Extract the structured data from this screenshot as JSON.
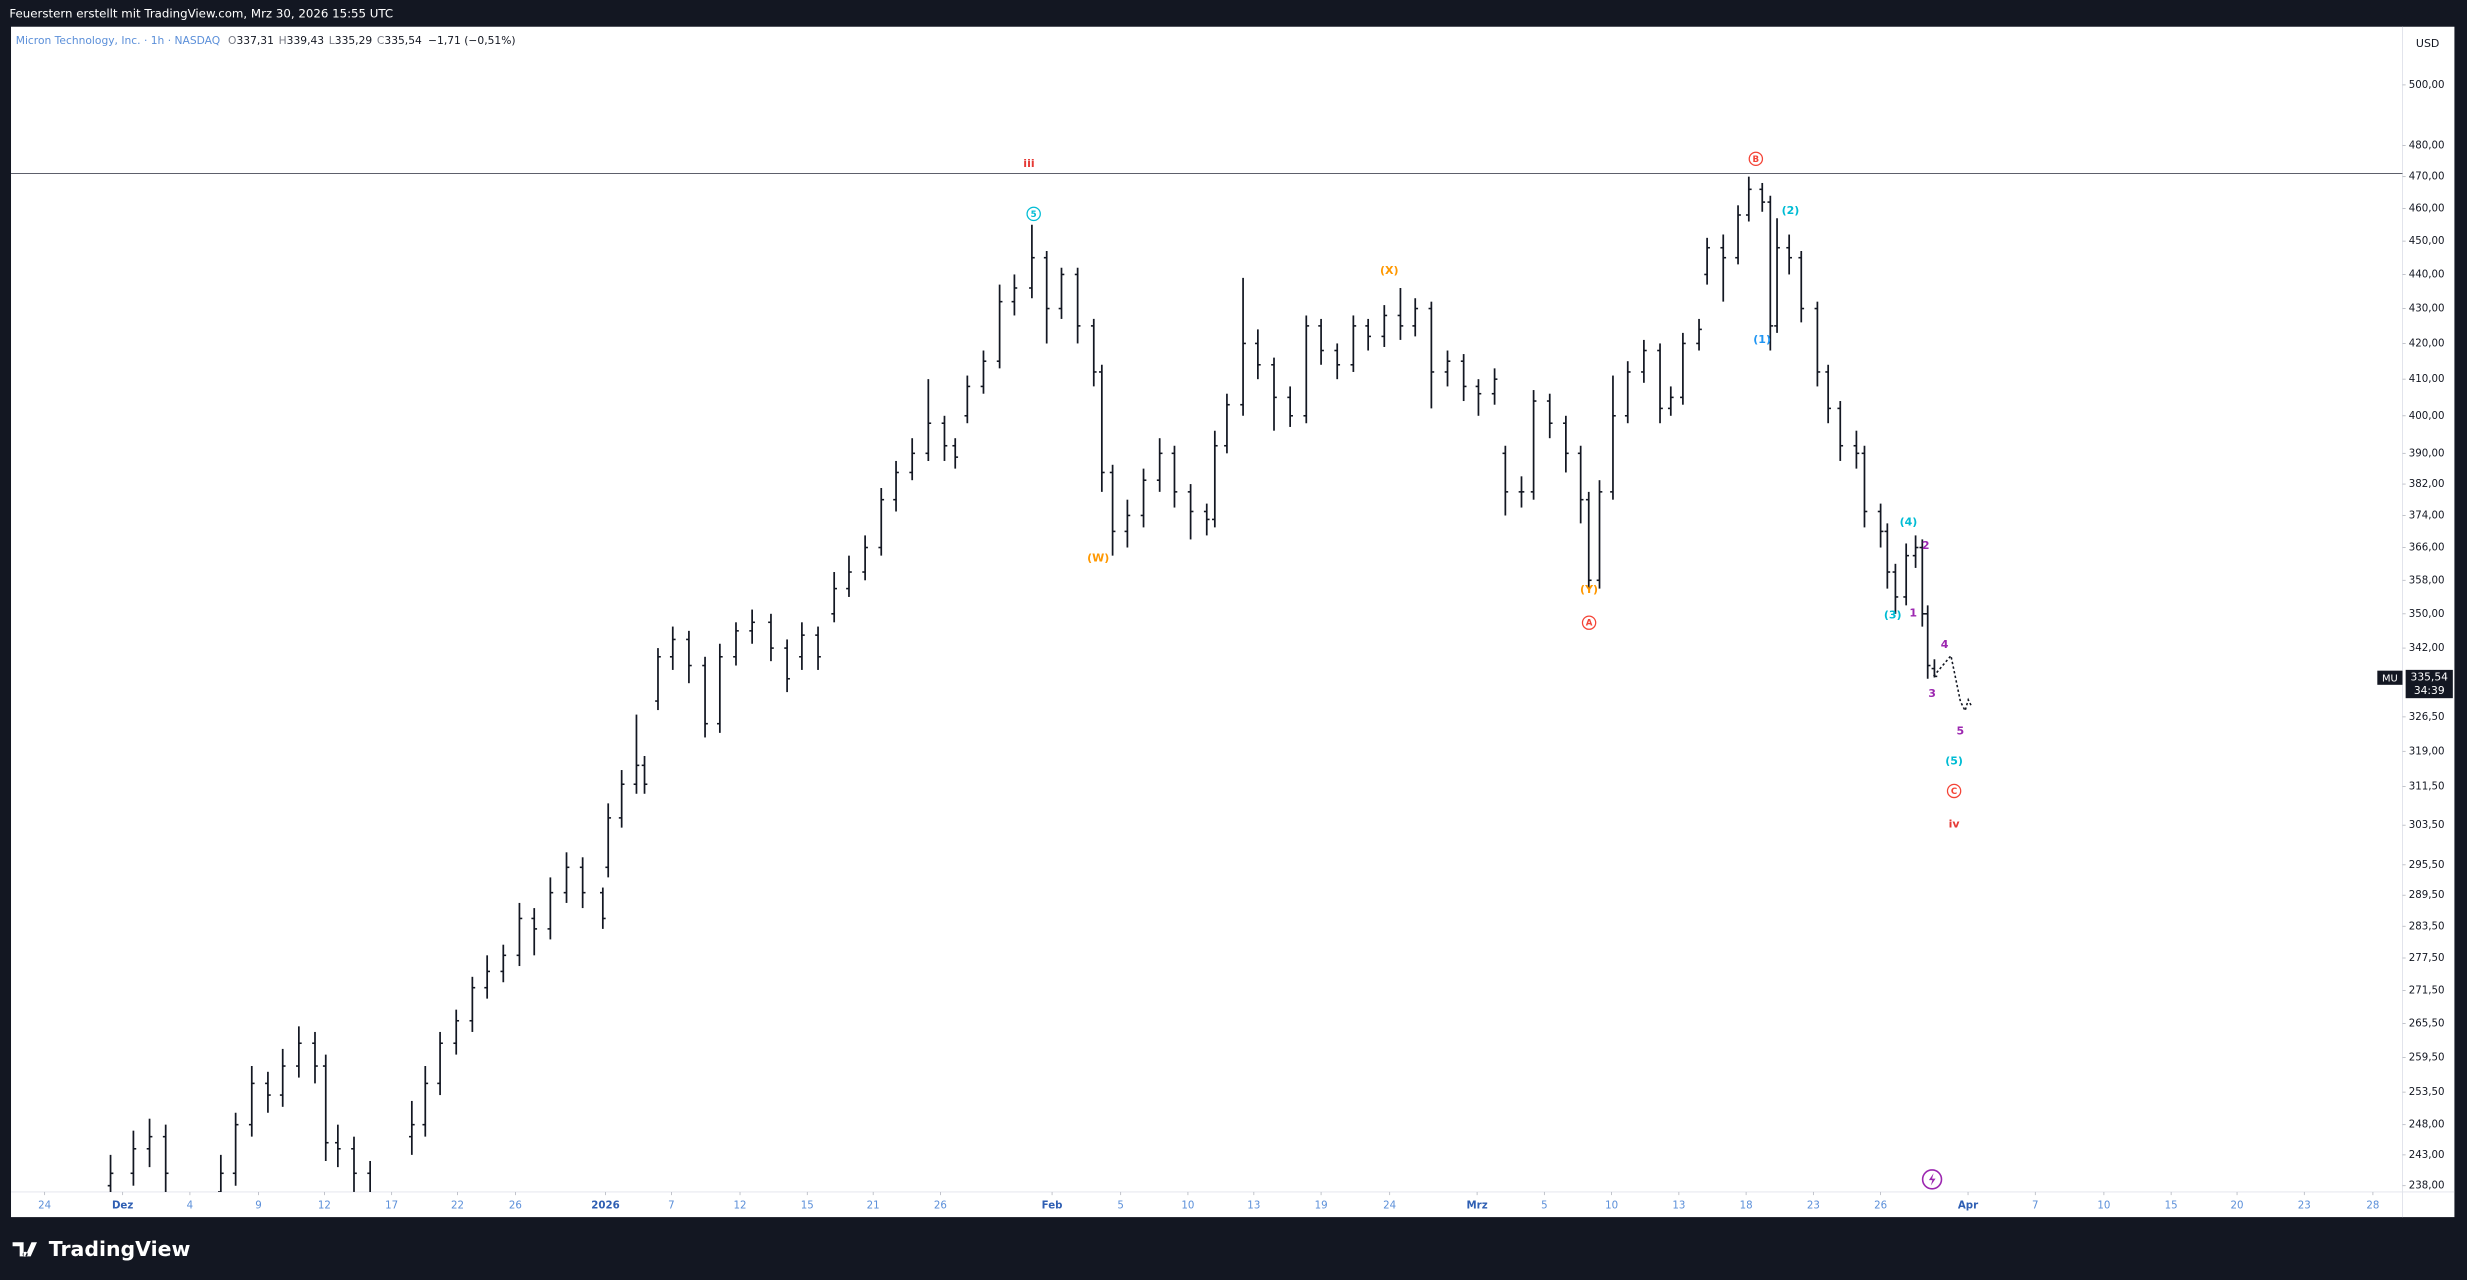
{
  "header": "Feuerstern erstellt mit TradingView.com, Mrz 30, 2026 15:55 UTC",
  "brand": "TradingView",
  "chart_data": {
    "type": "ohlc",
    "legend": {
      "symbol": "Micron Technology, Inc. · 1h · NASDAQ",
      "ohlc": [
        {
          "key": "O",
          "value": "337,31"
        },
        {
          "key": "H",
          "value": "339,43"
        },
        {
          "key": "L",
          "value": "335,29"
        },
        {
          "key": "C",
          "value": "335,54"
        }
      ],
      "change": "−1,71 (−0,51%)"
    },
    "currency": "USD",
    "price_label": {
      "symbol": "MU",
      "price": "335,54",
      "countdown": "34:39"
    },
    "color": "#131722",
    "log_scale": true,
    "grid": false,
    "hline": 471,
    "xlim": [
      0,
      177.8
    ],
    "ylim": [
      237,
      520
    ],
    "xticks": [
      {
        "value": 2.5,
        "label": "24"
      },
      {
        "value": 8.3,
        "label": "Dez"
      },
      {
        "value": 13.3,
        "label": "4"
      },
      {
        "value": 18.4,
        "label": "9"
      },
      {
        "value": 23.3,
        "label": "12"
      },
      {
        "value": 28.3,
        "label": "17"
      },
      {
        "value": 33.2,
        "label": "22"
      },
      {
        "value": 37.5,
        "label": "26"
      },
      {
        "value": 44.2,
        "label": "2026"
      },
      {
        "value": 49.1,
        "label": "7"
      },
      {
        "value": 54.2,
        "label": "12"
      },
      {
        "value": 59.2,
        "label": "15"
      },
      {
        "value": 64.1,
        "label": "21"
      },
      {
        "value": 69.1,
        "label": "26"
      },
      {
        "value": 77.4,
        "label": "Feb"
      },
      {
        "value": 82.5,
        "label": "5"
      },
      {
        "value": 87.5,
        "label": "10"
      },
      {
        "value": 92.4,
        "label": "13"
      },
      {
        "value": 97.4,
        "label": "19"
      },
      {
        "value": 102.5,
        "label": "24"
      },
      {
        "value": 109,
        "label": "Mrz"
      },
      {
        "value": 114,
        "label": "5"
      },
      {
        "value": 119,
        "label": "10"
      },
      {
        "value": 124,
        "label": "13"
      },
      {
        "value": 129,
        "label": "18"
      },
      {
        "value": 134,
        "label": "23"
      },
      {
        "value": 139,
        "label": "26"
      },
      {
        "value": 145.5,
        "label": "Apr"
      },
      {
        "value": 150.5,
        "label": "7"
      },
      {
        "value": 155.6,
        "label": "10"
      },
      {
        "value": 160.6,
        "label": "15"
      },
      {
        "value": 165.5,
        "label": "20"
      },
      {
        "value": 170.5,
        "label": "23"
      },
      {
        "value": 175.6,
        "label": "28"
      }
    ],
    "yticks": [
      {
        "value": 500,
        "label": "500,00"
      },
      {
        "value": 480,
        "label": "480,00"
      },
      {
        "value": 470,
        "label": "470,00"
      },
      {
        "value": 460,
        "label": "460,00"
      },
      {
        "value": 450,
        "label": "450,00"
      },
      {
        "value": 440,
        "label": "440,00"
      },
      {
        "value": 430,
        "label": "430,00"
      },
      {
        "value": 420,
        "label": "420,00"
      },
      {
        "value": 410,
        "label": "410,00"
      },
      {
        "value": 400,
        "label": "400,00"
      },
      {
        "value": 390,
        "label": "390,00"
      },
      {
        "value": 382,
        "label": "382,00"
      },
      {
        "value": 374,
        "label": "374,00"
      },
      {
        "value": 366,
        "label": "366,00"
      },
      {
        "value": 358,
        "label": "358,00"
      },
      {
        "value": 350,
        "label": "350,00"
      },
      {
        "value": 342,
        "label": "342,00"
      },
      {
        "value": 326.5,
        "label": "326,50"
      },
      {
        "value": 319,
        "label": "319,00"
      },
      {
        "value": 311.5,
        "label": "311,50"
      },
      {
        "value": 303.5,
        "label": "303,50"
      },
      {
        "value": 295.5,
        "label": "295,50"
      },
      {
        "value": 289.5,
        "label": "289,50"
      },
      {
        "value": 283.5,
        "label": "283,50"
      },
      {
        "value": 277.5,
        "label": "277,50"
      },
      {
        "value": 271.5,
        "label": "271,50"
      },
      {
        "value": 265.5,
        "label": "265,50"
      },
      {
        "value": 259.5,
        "label": "259,50"
      },
      {
        "value": 253.5,
        "label": "253,50"
      },
      {
        "value": 248,
        "label": "248,00"
      },
      {
        "value": 243,
        "label": "243,00"
      },
      {
        "value": 238,
        "label": "238,00"
      }
    ],
    "bars": [
      [
        7.4,
        238,
        243,
        236,
        240
      ],
      [
        9.1,
        240,
        247,
        238,
        244
      ],
      [
        10.3,
        244,
        249,
        241,
        246
      ],
      [
        11.5,
        246,
        248,
        237,
        240
      ],
      [
        15.6,
        237,
        243,
        235,
        240
      ],
      [
        16.7,
        240,
        250,
        238,
        248
      ],
      [
        17.9,
        248,
        258,
        246,
        255
      ],
      [
        19.1,
        255,
        257,
        250,
        253
      ],
      [
        20.2,
        253,
        261,
        251,
        258
      ],
      [
        21.4,
        258,
        265,
        256,
        262
      ],
      [
        22.6,
        262,
        264,
        255,
        258
      ],
      [
        23.4,
        258,
        260,
        242,
        245
      ],
      [
        24.3,
        245,
        248,
        241,
        244
      ],
      [
        25.5,
        244,
        246,
        237,
        240
      ],
      [
        26.7,
        240,
        242,
        234,
        236
      ],
      [
        29.8,
        246,
        252,
        243,
        248
      ],
      [
        30.8,
        248,
        258,
        246,
        255
      ],
      [
        31.9,
        255,
        264,
        253,
        262
      ],
      [
        33.1,
        262,
        268,
        260,
        266
      ],
      [
        34.3,
        266,
        274,
        264,
        272
      ],
      [
        35.4,
        272,
        278,
        270,
        275
      ],
      [
        36.6,
        275,
        280,
        273,
        278
      ],
      [
        37.8,
        278,
        288,
        276,
        285
      ],
      [
        38.9,
        285,
        287,
        278,
        283
      ],
      [
        40.1,
        283,
        293,
        281,
        290
      ],
      [
        41.3,
        290,
        298,
        288,
        295
      ],
      [
        42.5,
        295,
        297,
        287,
        290
      ],
      [
        44,
        290,
        291,
        283,
        285
      ],
      [
        44.4,
        295,
        308,
        293,
        305
      ],
      [
        45.4,
        305,
        315,
        303,
        312
      ],
      [
        46.5,
        312,
        327,
        310,
        316
      ],
      [
        47.1,
        316,
        318,
        310,
        312
      ],
      [
        48.1,
        330,
        342,
        328,
        340
      ],
      [
        49.2,
        340,
        347,
        337,
        344
      ],
      [
        50.4,
        344,
        346,
        334,
        338
      ],
      [
        51.6,
        338,
        340,
        322,
        325
      ],
      [
        52.7,
        325,
        343,
        323,
        340
      ],
      [
        53.9,
        340,
        348,
        338,
        346
      ],
      [
        55.1,
        346,
        351,
        343,
        348
      ],
      [
        56.5,
        348,
        350,
        339,
        342
      ],
      [
        57.7,
        342,
        344,
        332,
        335
      ],
      [
        58.8,
        340,
        348,
        337,
        345
      ],
      [
        60,
        345,
        347,
        337,
        340
      ],
      [
        61.2,
        350,
        360,
        348,
        356
      ],
      [
        62.3,
        356,
        364,
        354,
        360
      ],
      [
        63.5,
        360,
        369,
        358,
        366
      ],
      [
        64.7,
        366,
        381,
        364,
        378
      ],
      [
        65.8,
        378,
        388,
        375,
        385
      ],
      [
        67,
        385,
        394,
        383,
        390
      ],
      [
        68.2,
        390,
        410,
        388,
        398
      ],
      [
        69.4,
        398,
        400,
        388,
        392
      ],
      [
        70.2,
        392,
        394,
        386,
        389
      ],
      [
        71.1,
        400,
        411,
        398,
        408
      ],
      [
        72.3,
        408,
        418,
        406,
        415
      ],
      [
        73.5,
        415,
        437,
        413,
        432
      ],
      [
        74.6,
        432,
        440,
        428,
        436
      ],
      [
        75.9,
        436,
        455,
        433,
        445
      ],
      [
        77,
        445,
        447,
        420,
        430
      ],
      [
        78.1,
        430,
        442,
        427,
        440
      ],
      [
        79.3,
        440,
        442,
        420,
        425
      ],
      [
        80.5,
        425,
        427,
        408,
        412
      ],
      [
        81.1,
        412,
        414,
        380,
        385
      ],
      [
        81.9,
        385,
        387,
        364,
        370
      ],
      [
        83,
        370,
        378,
        366,
        374
      ],
      [
        84.2,
        374,
        386,
        371,
        383
      ],
      [
        85.4,
        383,
        394,
        380,
        390
      ],
      [
        86.5,
        390,
        392,
        376,
        380
      ],
      [
        87.7,
        380,
        382,
        368,
        375
      ],
      [
        88.9,
        375,
        377,
        369,
        373
      ],
      [
        89.5,
        373,
        396,
        371,
        392
      ],
      [
        90.4,
        392,
        406,
        390,
        403
      ],
      [
        91.6,
        403,
        439,
        400,
        420
      ],
      [
        92.7,
        420,
        424,
        410,
        414
      ],
      [
        93.9,
        414,
        416,
        396,
        405
      ],
      [
        95.1,
        405,
        408,
        397,
        400
      ],
      [
        96.3,
        400,
        428,
        398,
        425
      ],
      [
        97.4,
        425,
        427,
        414,
        418
      ],
      [
        98.6,
        418,
        420,
        410,
        414
      ],
      [
        99.8,
        414,
        428,
        412,
        425
      ],
      [
        100.9,
        425,
        427,
        418,
        422
      ],
      [
        102.1,
        422,
        431,
        419,
        428
      ],
      [
        103.3,
        428,
        436,
        421,
        425
      ],
      [
        104.4,
        425,
        433,
        422,
        430
      ],
      [
        105.6,
        430,
        432,
        402,
        412
      ],
      [
        106.8,
        412,
        418,
        408,
        415
      ],
      [
        108,
        415,
        417,
        404,
        408
      ],
      [
        109.1,
        408,
        410,
        400,
        406
      ],
      [
        110.3,
        406,
        413,
        403,
        410
      ],
      [
        111.1,
        390,
        392,
        374,
        380
      ],
      [
        112.3,
        380,
        384,
        376,
        380
      ],
      [
        113.2,
        380,
        407,
        378,
        404
      ],
      [
        114.4,
        404,
        406,
        394,
        398
      ],
      [
        115.6,
        398,
        400,
        385,
        390
      ],
      [
        116.7,
        390,
        392,
        372,
        378
      ],
      [
        117.3,
        378,
        380,
        356,
        358
      ],
      [
        118.1,
        358,
        383,
        356,
        380
      ],
      [
        119.1,
        380,
        411,
        378,
        400
      ],
      [
        120.2,
        400,
        415,
        398,
        412
      ],
      [
        121.4,
        412,
        421,
        409,
        418
      ],
      [
        122.6,
        418,
        420,
        398,
        402
      ],
      [
        123.4,
        402,
        408,
        400,
        405
      ],
      [
        124.3,
        405,
        423,
        403,
        420
      ],
      [
        125.5,
        420,
        427,
        418,
        424
      ],
      [
        126.1,
        440,
        451,
        437,
        448
      ],
      [
        127.3,
        448,
        452,
        432,
        445
      ],
      [
        128.4,
        445,
        461,
        443,
        458
      ],
      [
        129.2,
        458,
        470,
        456,
        466
      ],
      [
        130.2,
        466,
        468,
        459,
        462
      ],
      [
        130.8,
        462,
        464,
        418,
        425
      ],
      [
        131.3,
        425,
        457,
        423,
        448
      ],
      [
        132.2,
        448,
        452,
        440,
        445
      ],
      [
        133.1,
        445,
        447,
        426,
        430
      ],
      [
        134.3,
        430,
        432,
        408,
        412
      ],
      [
        135.1,
        412,
        414,
        398,
        402
      ],
      [
        136,
        402,
        404,
        388,
        392
      ],
      [
        137.2,
        392,
        396,
        386,
        390
      ],
      [
        137.8,
        390,
        392,
        371,
        375
      ],
      [
        139,
        375,
        377,
        366,
        370
      ],
      [
        139.5,
        370,
        372,
        356,
        360
      ],
      [
        140.1,
        360,
        362,
        350,
        354
      ],
      [
        140.9,
        354,
        367,
        352,
        364
      ],
      [
        141.6,
        364,
        369,
        361,
        366
      ],
      [
        142.1,
        366,
        368,
        347,
        350
      ],
      [
        142.5,
        350,
        352,
        335,
        338
      ],
      [
        143,
        337.31,
        339.43,
        335.29,
        335.54
      ]
    ],
    "annotations": [
      {
        "text": "iii",
        "color": "#e53935",
        "circled": false
      },
      {
        "text": "5",
        "color": "#00bcd4",
        "circled": true
      },
      {
        "text": "(X)",
        "color": "#ff9800",
        "circled": false
      },
      {
        "text": "(W)",
        "color": "#ff9800",
        "circled": false
      },
      {
        "text": "(Y)",
        "color": "#ff9800",
        "circled": false
      },
      {
        "text": "A",
        "color": "#f44336",
        "circled": true
      },
      {
        "text": "B",
        "color": "#f44336",
        "circled": true
      },
      {
        "text": "(2)",
        "color": "#00bcd4",
        "circled": false
      },
      {
        "text": "(1)",
        "color": "#2196f3",
        "circled": false
      },
      {
        "text": "(4)",
        "color": "#00bcd4",
        "circled": false
      },
      {
        "text": "2",
        "color": "#9c27b0",
        "circled": false
      },
      {
        "text": "1",
        "color": "#9c27b0",
        "circled": false
      },
      {
        "text": "(3)",
        "color": "#00bcd4",
        "circled": false
      },
      {
        "text": "4",
        "color": "#9c27b0",
        "circled": false
      },
      {
        "text": "3",
        "color": "#9c27b0",
        "circled": false
      },
      {
        "text": "5",
        "color": "#9c27b0",
        "circled": false
      },
      {
        "text": "(5)",
        "color": "#00bcd4",
        "circled": false
      },
      {
        "text": "C",
        "color": "#f44336",
        "circled": true
      },
      {
        "text": "iv",
        "color": "#e53935",
        "circled": false
      }
    ]
  }
}
